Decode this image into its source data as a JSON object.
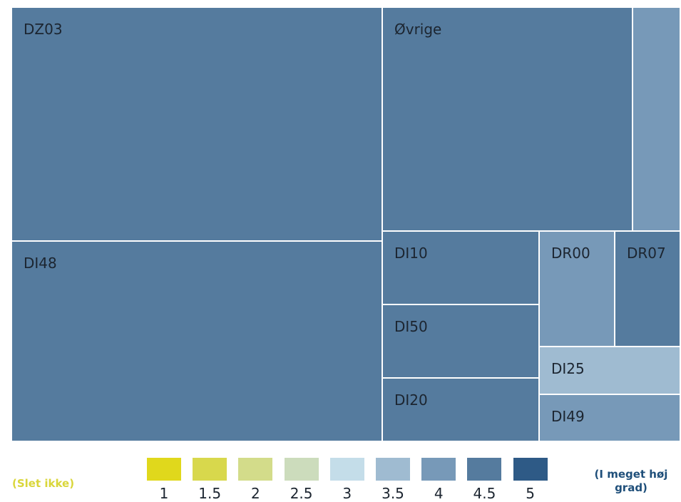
{
  "chart_data": {
    "type": "treemap",
    "color_scale": {
      "stops": [
        {
          "value": 1,
          "color": "#e0d81c"
        },
        {
          "value": 1.5,
          "color": "#d8d84c"
        },
        {
          "value": 2,
          "color": "#d3dc8a"
        },
        {
          "value": 2.5,
          "color": "#ccdcbc"
        },
        {
          "value": 3,
          "color": "#c4dde9"
        },
        {
          "value": 3.5,
          "color": "#9fbbd1"
        },
        {
          "value": 4,
          "color": "#7799b8"
        },
        {
          "value": 4.5,
          "color": "#557b9e"
        },
        {
          "value": 5,
          "color": "#2e5a86"
        }
      ],
      "ticks": [
        "1",
        "1.5",
        "2",
        "2.5",
        "3",
        "3.5",
        "4",
        "4.5",
        "5"
      ],
      "low_label": "(Slet ikke)",
      "high_label": "(I meget høj grad)",
      "low_label_color": "#d9d63a",
      "high_label_color": "#1f4f7a"
    },
    "tiles": [
      {
        "label": "DZ03",
        "color": "#557b9e",
        "shown": true
      },
      {
        "label": "DI48",
        "color": "#557b9e",
        "shown": true
      },
      {
        "label": "Øvrige",
        "color": "#557b9e",
        "shown": true
      },
      {
        "label": "",
        "color": "#7799b8",
        "shown": false
      },
      {
        "label": "DI10",
        "color": "#557b9e",
        "shown": true
      },
      {
        "label": "DI50",
        "color": "#557b9e",
        "shown": true
      },
      {
        "label": "DI20",
        "color": "#557b9e",
        "shown": true
      },
      {
        "label": "DR00",
        "color": "#7799b8",
        "shown": true
      },
      {
        "label": "DR07",
        "color": "#557b9e",
        "shown": true
      },
      {
        "label": "DI25",
        "color": "#9fbbd1",
        "shown": true
      },
      {
        "label": "DI49",
        "color": "#7799b8",
        "shown": true
      }
    ]
  }
}
